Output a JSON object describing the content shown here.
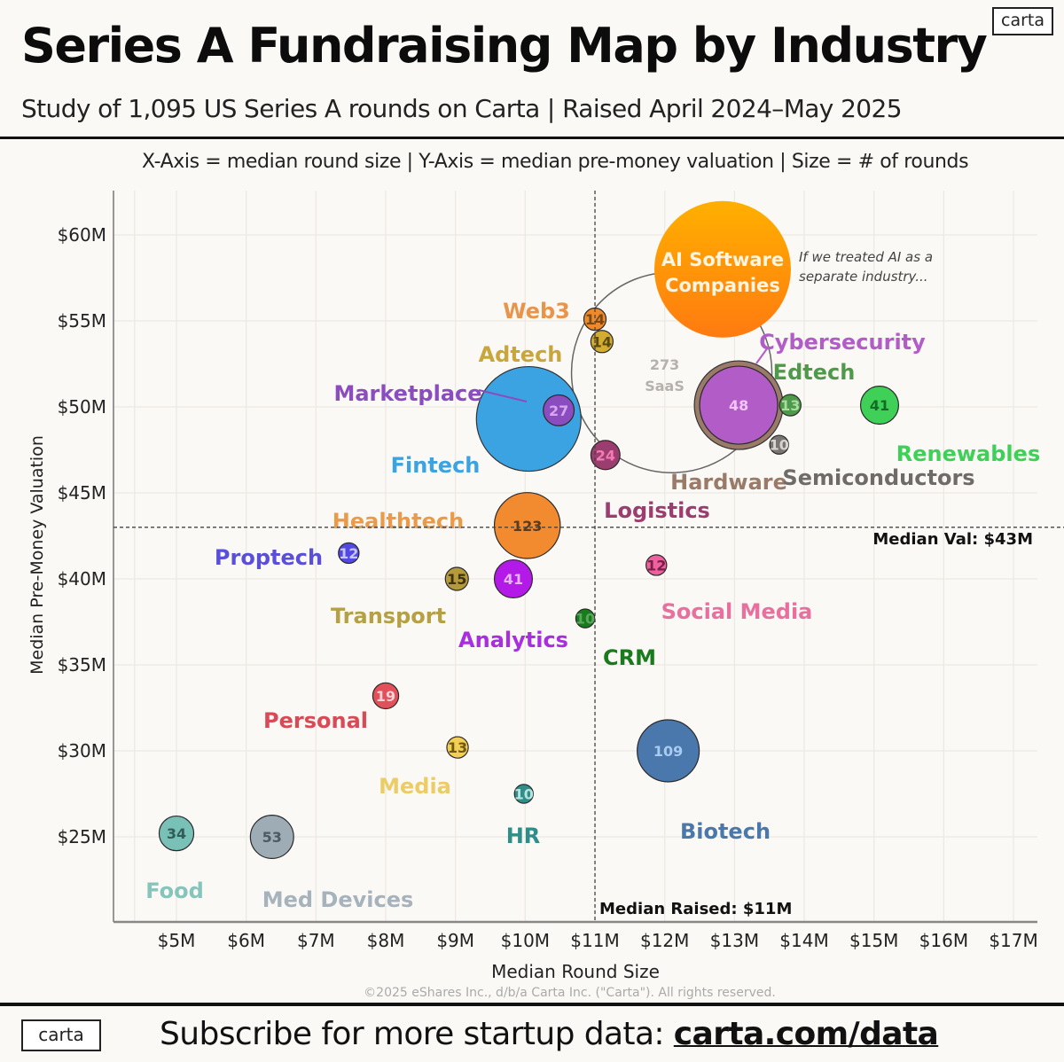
{
  "header": {
    "title": "Series A Fundraising Map by Industry",
    "subtitle": "Study of 1,095 US Series A rounds on Carta | Raised April 2024–May 2025",
    "logo": "carta",
    "axis_legend": "X-Axis = median round size  |  Y-Axis = median pre-money valuation  |  Size = # of rounds"
  },
  "footer": {
    "logo": "carta",
    "subscribe_text": "Subscribe for more startup data: ",
    "subscribe_link": "carta.com/data",
    "copyright": "©2025 eShares Inc., d/b/a Carta Inc. (\"Carta\"). All rights reserved."
  },
  "chart_data": {
    "type": "scatter",
    "subtype": "bubble",
    "title": "Series A Fundraising Map by Industry",
    "xlabel": "Median Round Size",
    "ylabel": "Median Pre-Money Valuation",
    "xlim": [
      4.1,
      17.3
    ],
    "ylim": [
      21.5,
      62.5
    ],
    "xticks": [
      5,
      6,
      7,
      8,
      9,
      10,
      11,
      12,
      13,
      14,
      15,
      16,
      17
    ],
    "xtick_labels": [
      "$5M",
      "$6M",
      "$7M",
      "$8M",
      "$9M",
      "$10M",
      "$11M",
      "$12M",
      "$13M",
      "$14M",
      "$15M",
      "$16M",
      "$17M"
    ],
    "yticks": [
      25,
      30,
      35,
      40,
      45,
      50,
      55,
      60
    ],
    "ytick_labels": [
      "$25M",
      "$30M",
      "$35M",
      "$40M",
      "$45M",
      "$50M",
      "$55M",
      "$60M"
    ],
    "grid": true,
    "size_meaning": "# of rounds",
    "reference_lines": [
      {
        "axis": "x",
        "value": 11,
        "label": "Median Raised: $11M"
      },
      {
        "axis": "y",
        "value": 43,
        "label": "Median Val: $43M"
      }
    ],
    "annotation": "If we treated AI as a separate industry...",
    "points": [
      {
        "name": "SaaS",
        "x": 12.1,
        "y": 52.0,
        "rounds": 273,
        "color": "#888888",
        "style": "ring"
      },
      {
        "name": "AI Software Companies",
        "x": 12.83,
        "y": 58.0,
        "rounds": null,
        "color": "#ff9a0a",
        "style": "gradient"
      },
      {
        "name": "Web3",
        "x": 11.0,
        "y": 55.1,
        "rounds": 14,
        "color": "#ef8a2c"
      },
      {
        "name": "Adtech",
        "x": 11.1,
        "y": 53.8,
        "rounds": 14,
        "color": "#d3ac31"
      },
      {
        "name": "Fintech",
        "x": 10.05,
        "y": 49.3,
        "rounds": null,
        "color": "#3ba3e2"
      },
      {
        "name": "Marketplace",
        "x": 10.48,
        "y": 49.8,
        "rounds": 27,
        "color": "#8a4cbf"
      },
      {
        "name": "Logistics",
        "x": 11.15,
        "y": 47.2,
        "rounds": 24,
        "color": "#9c3d6f"
      },
      {
        "name": "Hardware",
        "x": 13.06,
        "y": 50.1,
        "rounds": null,
        "color": "#9a7a68",
        "style": "outer-ring"
      },
      {
        "name": "Cybersecurity",
        "x": 13.06,
        "y": 50.1,
        "rounds": 48,
        "color": "#b25cc8"
      },
      {
        "name": "Edtech",
        "x": 13.8,
        "y": 50.1,
        "rounds": 13,
        "color": "#4f9a4a"
      },
      {
        "name": "Semiconductors",
        "x": 13.64,
        "y": 47.8,
        "rounds": 10,
        "color": "#7a7572"
      },
      {
        "name": "Renewables",
        "x": 15.08,
        "y": 50.1,
        "rounds": 41,
        "color": "#3ed057"
      },
      {
        "name": "Healthtech",
        "x": 10.03,
        "y": 43.1,
        "rounds": 123,
        "color": "#f28b2f"
      },
      {
        "name": "Proptech",
        "x": 7.47,
        "y": 41.5,
        "rounds": 12,
        "color": "#5249e4"
      },
      {
        "name": "Transport",
        "x": 9.02,
        "y": 40.0,
        "rounds": 15,
        "color": "#b59a3b"
      },
      {
        "name": "Analytics",
        "x": 9.83,
        "y": 40.0,
        "rounds": 41,
        "color": "#b31ae8"
      },
      {
        "name": "Social Media",
        "x": 11.88,
        "y": 40.8,
        "rounds": 12,
        "color": "#f0609f"
      },
      {
        "name": "CRM",
        "x": 10.86,
        "y": 37.7,
        "rounds": 10,
        "color": "#1a7a1e"
      },
      {
        "name": "Personal",
        "x": 8.0,
        "y": 33.2,
        "rounds": 19,
        "color": "#e2505a"
      },
      {
        "name": "Media",
        "x": 9.03,
        "y": 30.2,
        "rounds": 13,
        "color": "#f3cf55"
      },
      {
        "name": "HR",
        "x": 9.98,
        "y": 27.5,
        "rounds": 10,
        "color": "#2f8d8a"
      },
      {
        "name": "Biotech",
        "x": 12.05,
        "y": 30.0,
        "rounds": 109,
        "color": "#4a78ad"
      },
      {
        "name": "Food",
        "x": 5.0,
        "y": 25.2,
        "rounds": 34,
        "color": "#79c0b6"
      },
      {
        "name": "Med Devices",
        "x": 6.37,
        "y": 25.0,
        "rounds": 53,
        "color": "#9eacb6"
      }
    ]
  }
}
